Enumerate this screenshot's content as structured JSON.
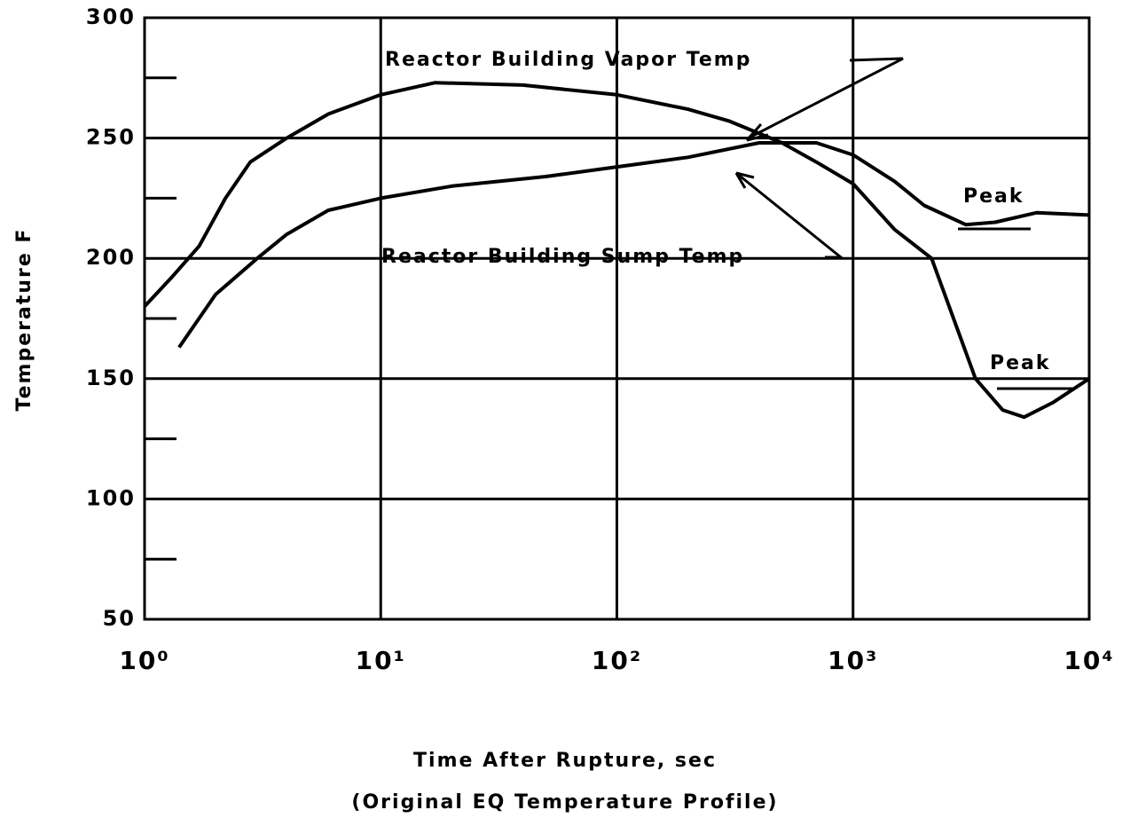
{
  "chart_data": {
    "type": "line",
    "xlabel": "Time After Rupture, sec",
    "subtitle": "(Original EQ Temperature Profile)",
    "ylabel": "Temperature F",
    "xscale": "log",
    "xlim": [
      1,
      10000
    ],
    "xticks": [
      {
        "value": 1,
        "label": "10⁰"
      },
      {
        "value": 10,
        "label": "10¹"
      },
      {
        "value": 100,
        "label": "10²"
      },
      {
        "value": 1000,
        "label": "10³"
      },
      {
        "value": 10000,
        "label": "10⁴"
      }
    ],
    "ylim": [
      50,
      300
    ],
    "yticks": [
      50,
      100,
      150,
      200,
      250,
      300
    ],
    "yminorticks": [
      75,
      125,
      175,
      225,
      275
    ],
    "grid": true,
    "annotations": [
      "Reactor Building Vapor Temp",
      "Reactor Building Sump Temp",
      "Peak",
      "Peak"
    ],
    "series": [
      {
        "name": "Reactor Building Vapor Temp",
        "color": "#000000",
        "x": [
          1,
          1.3,
          1.7,
          2.2,
          2.8,
          4,
          6,
          10,
          17,
          40,
          100,
          200,
          300,
          500,
          700,
          1000,
          1500,
          2150,
          3300,
          4300,
          5300,
          7000,
          10000
        ],
        "values": [
          180,
          192,
          205,
          225,
          240,
          250,
          260,
          268,
          273,
          272,
          268,
          262,
          257,
          248,
          240,
          231,
          212,
          200,
          150,
          137,
          134,
          140,
          150
        ]
      },
      {
        "name": "Reactor Building Sump Temp",
        "color": "#000000",
        "x": [
          1.4,
          2,
          3,
          4,
          6,
          10,
          20,
          50,
          100,
          200,
          400,
          700,
          1000,
          1500,
          2000,
          3000,
          4000,
          6000,
          10000
        ],
        "values": [
          163,
          185,
          200,
          210,
          220,
          225,
          230,
          234,
          238,
          242,
          248,
          248,
          243,
          232,
          222,
          214,
          215,
          219,
          218
        ]
      }
    ]
  }
}
